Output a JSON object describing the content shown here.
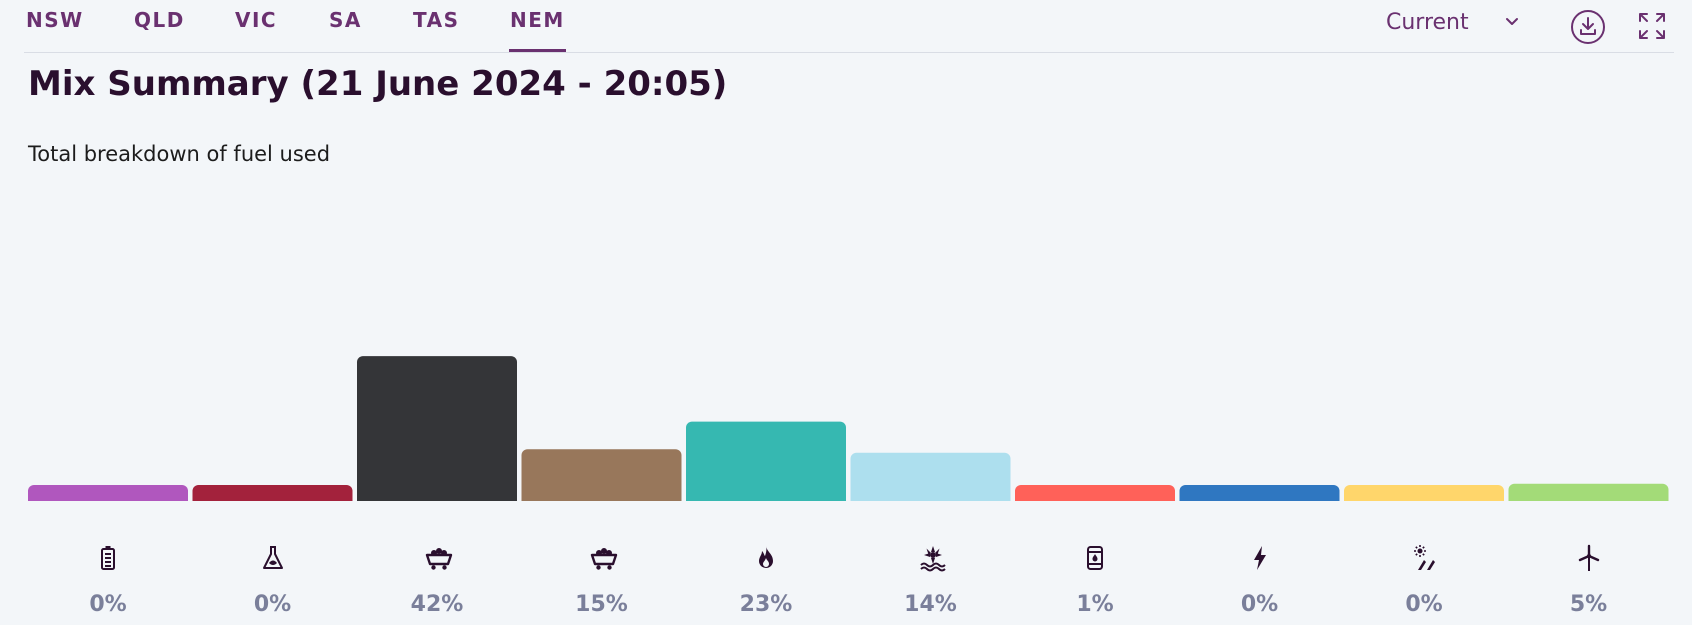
{
  "nav": {
    "tabs": [
      {
        "label": "NSW"
      },
      {
        "label": "QLD"
      },
      {
        "label": "VIC"
      },
      {
        "label": "SA"
      },
      {
        "label": "TAS"
      },
      {
        "label": "NEM",
        "active": true
      }
    ],
    "period_select": {
      "value": "Current"
    },
    "icons": [
      "download-icon",
      "fullscreen-icon"
    ]
  },
  "title": "Mix Summary (21 June 2024 - 20:05)",
  "subtitle": "Total breakdown of fuel used",
  "colors": {
    "accent": "#6a3170",
    "title": "#2a0f2e",
    "percent": "#7a7f9a"
  },
  "chart_data": {
    "type": "bar",
    "categories": [
      "battery",
      "biomass",
      "black coal",
      "brown coal",
      "gas",
      "hydro",
      "liquid fuel",
      "other",
      "solar",
      "wind"
    ],
    "icons": [
      "battery-icon",
      "flask-icon",
      "coal-cart-icon",
      "coal-cart-icon",
      "flame-icon",
      "hydro-icon",
      "fuel-barrel-icon",
      "lightning-icon",
      "solar-icon",
      "wind-turbine-icon"
    ],
    "values": [
      0,
      0,
      42,
      15,
      23,
      14,
      1,
      0,
      0,
      5
    ],
    "labels": [
      "0%",
      "0%",
      "42%",
      "15%",
      "23%",
      "14%",
      "1%",
      "0%",
      "0%",
      "5%"
    ],
    "colors": [
      "#b057be",
      "#a3223c",
      "#343538",
      "#98775b",
      "#36b8b1",
      "#addfee",
      "#ff6159",
      "#2f77c1",
      "#ffd66b",
      "#a3db78"
    ]
  }
}
